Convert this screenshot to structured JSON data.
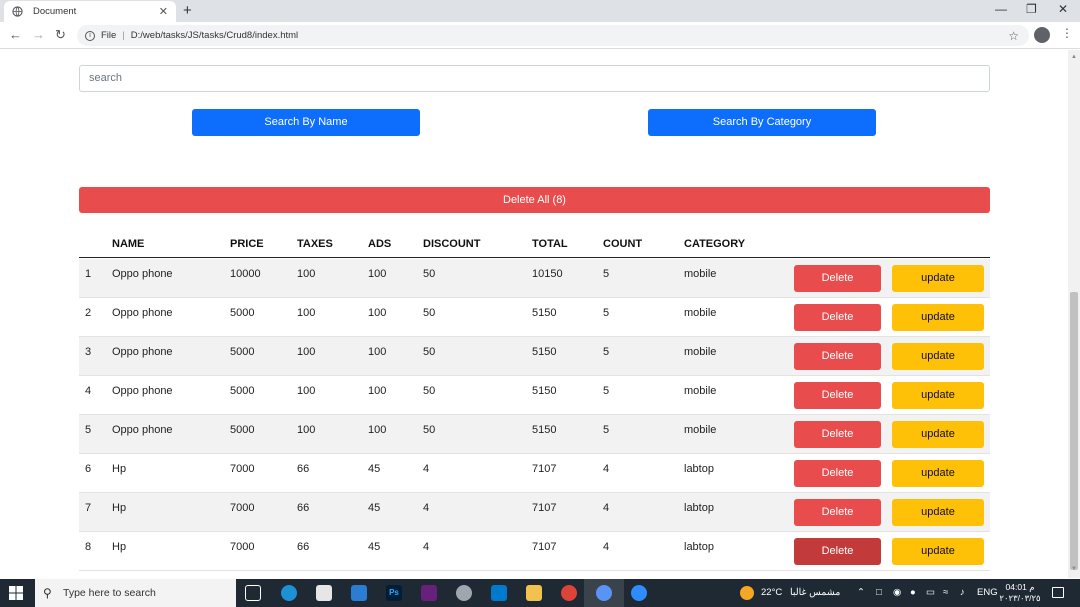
{
  "browser": {
    "tab_title": "Document",
    "tab_close": "✕",
    "new_tab": "+",
    "url_scheme": "File",
    "url": "D:/web/tasks/JS/tasks/Crud8/index.html",
    "win_min": "—",
    "win_restore": "❐",
    "win_close": "✕"
  },
  "page": {
    "search_placeholder": "search",
    "search_by_name": "Search By Name",
    "search_by_category": "Search By Category",
    "delete_all": "Delete All (8)"
  },
  "table": {
    "headers": [
      "NAME",
      "PRICE",
      "TAXES",
      "ADS",
      "DISCOUNT",
      "TOTAL",
      "COUNT",
      "CATEGORY"
    ],
    "delete_label": "Delete",
    "update_label": "update",
    "rows": [
      {
        "id": "1",
        "name": "Oppo phone",
        "price": "10000",
        "taxes": "100",
        "ads": "100",
        "discount": "50",
        "total": "10150",
        "count": "5",
        "category": "mobile"
      },
      {
        "id": "2",
        "name": "Oppo phone",
        "price": "5000",
        "taxes": "100",
        "ads": "100",
        "discount": "50",
        "total": "5150",
        "count": "5",
        "category": "mobile"
      },
      {
        "id": "3",
        "name": "Oppo phone",
        "price": "5000",
        "taxes": "100",
        "ads": "100",
        "discount": "50",
        "total": "5150",
        "count": "5",
        "category": "mobile"
      },
      {
        "id": "4",
        "name": "Oppo phone",
        "price": "5000",
        "taxes": "100",
        "ads": "100",
        "discount": "50",
        "total": "5150",
        "count": "5",
        "category": "mobile"
      },
      {
        "id": "5",
        "name": "Oppo phone",
        "price": "5000",
        "taxes": "100",
        "ads": "100",
        "discount": "50",
        "total": "5150",
        "count": "5",
        "category": "mobile"
      },
      {
        "id": "6",
        "name": "Hp",
        "price": "7000",
        "taxes": "66",
        "ads": "45",
        "discount": "4",
        "total": "7107",
        "count": "4",
        "category": "labtop"
      },
      {
        "id": "7",
        "name": "Hp",
        "price": "7000",
        "taxes": "66",
        "ads": "45",
        "discount": "4",
        "total": "7107",
        "count": "4",
        "category": "labtop"
      },
      {
        "id": "8",
        "name": "Hp",
        "price": "7000",
        "taxes": "66",
        "ads": "45",
        "discount": "4",
        "total": "7107",
        "count": "4",
        "category": "labtop"
      }
    ]
  },
  "taskbar": {
    "search_text": "Type here to search",
    "weather": "22°C",
    "weather_desc": "مشمس غالبا",
    "lang": "ENG",
    "time": "04:01 م",
    "date": "٢٠٢٣/٠٣/٢٥"
  },
  "colors": {
    "primary": "#0d6efd",
    "danger": "#e84c4c",
    "warning": "#ffc107"
  }
}
